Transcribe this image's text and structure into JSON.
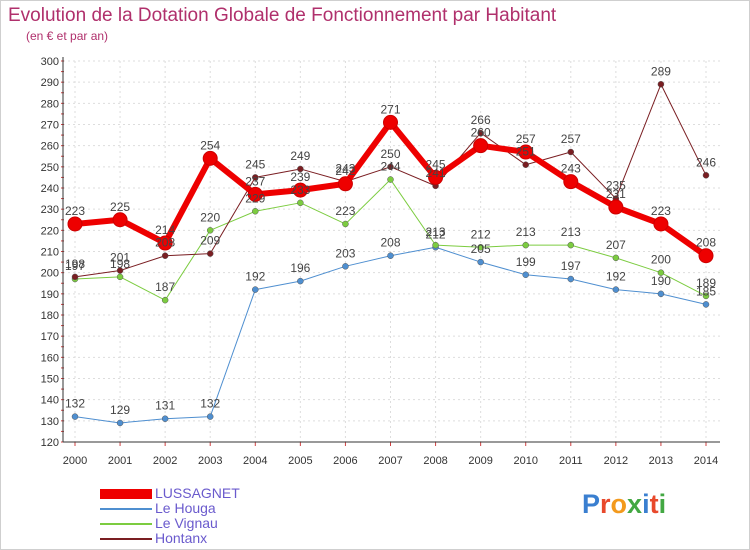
{
  "chart_data": {
    "type": "line",
    "title": "Evolution de la Dotation Globale de Fonctionnement par Habitant",
    "subtitle": "(en € et par an)",
    "xlabel": "",
    "ylabel": "",
    "x": [
      "2000",
      "2001",
      "2002",
      "2003",
      "2004",
      "2005",
      "2006",
      "2007",
      "2008",
      "2009",
      "2010",
      "2011",
      "2012",
      "2013",
      "2014"
    ],
    "ylim": [
      120,
      300
    ],
    "yticks": [
      120,
      130,
      140,
      150,
      160,
      170,
      180,
      190,
      200,
      210,
      220,
      230,
      240,
      250,
      260,
      270,
      280,
      290,
      300
    ],
    "grid": true,
    "legend": "bottom-left",
    "series": [
      {
        "name": "LUSSAGNET",
        "color": "#ee0000",
        "width": 6,
        "marker": 7,
        "values": [
          223,
          225,
          214,
          254,
          237,
          239,
          242,
          271,
          245,
          260,
          257,
          243,
          231,
          223,
          208
        ]
      },
      {
        "name": "Le Houga",
        "color": "#4f8fd0",
        "width": 1,
        "marker": 3,
        "values": [
          132,
          129,
          131,
          132,
          192,
          196,
          203,
          208,
          212,
          205,
          199,
          197,
          192,
          190,
          185
        ]
      },
      {
        "name": "Le Vignau",
        "color": "#7ccc40",
        "width": 1,
        "marker": 3,
        "values": [
          197,
          198,
          187,
          220,
          229,
          233,
          223,
          244,
          213,
          212,
          213,
          213,
          207,
          200,
          189
        ]
      },
      {
        "name": "Hontanx",
        "color": "#7a1e22",
        "width": 1,
        "marker": 3,
        "values": [
          198,
          201,
          208,
          209,
          245,
          249,
          243,
          250,
          241,
          266,
          251,
          257,
          235,
          289,
          246
        ]
      }
    ]
  },
  "logo": {
    "text": "Proxiti"
  }
}
